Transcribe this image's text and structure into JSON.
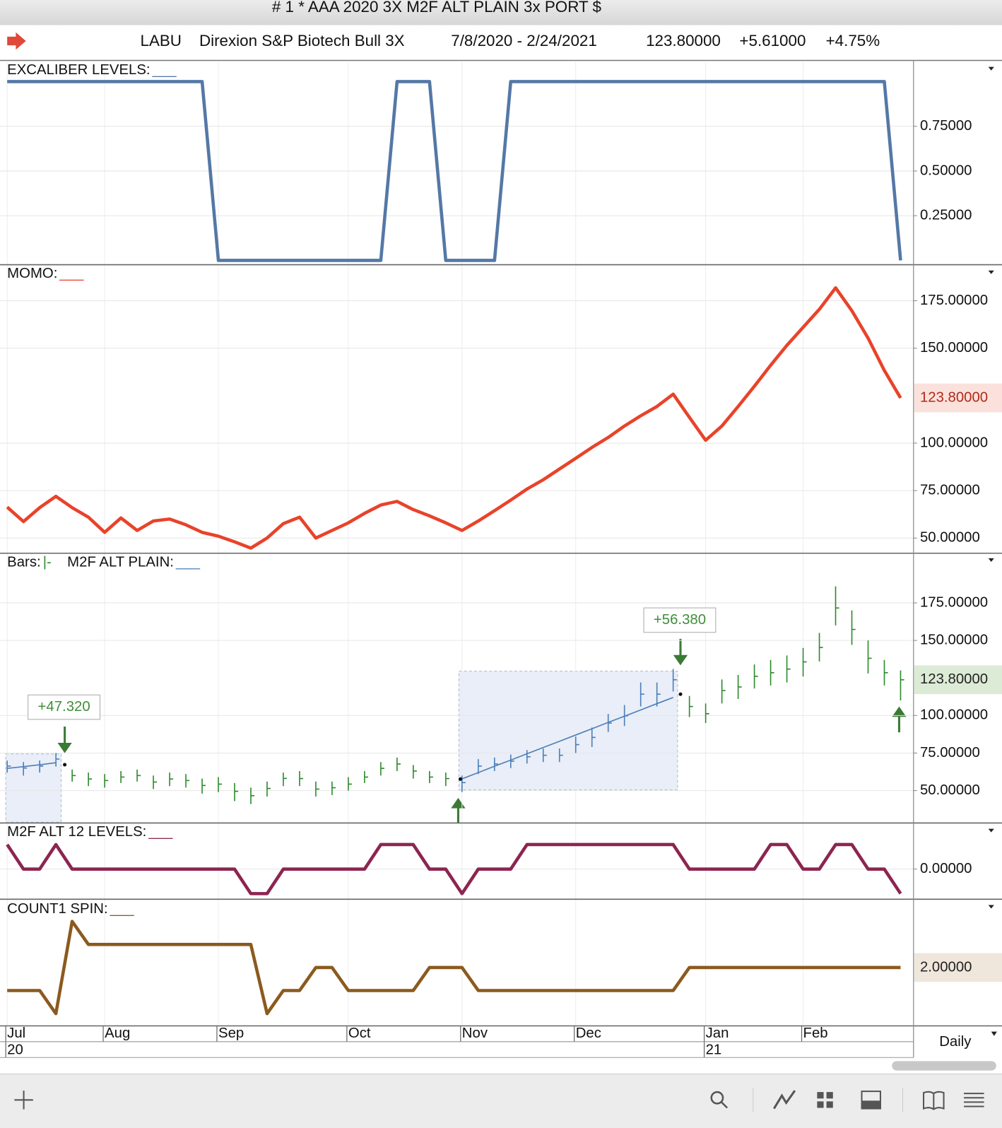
{
  "window_title": "# 1 * AAA 2020 3X M2F ALT PLAIN 3x PORT $",
  "header": {
    "symbol": "LABU",
    "name": "Direxion S&P Biotech Bull 3X",
    "range": "7/8/2020 - 2/24/2021",
    "last": "123.80000",
    "change": "+5.61000",
    "change_pct": "+4.75%"
  },
  "period": "Daily",
  "chart_data": [
    {
      "type": "line",
      "ylim": [
        -0.02,
        1.11
      ],
      "yticks": [
        {
          "value": 0.75,
          "label": "0.75000"
        },
        {
          "value": 0.5,
          "label": "0.50000"
        },
        {
          "value": 0.25,
          "label": "0.25000"
        }
      ],
      "series": [
        {
          "name": "EXCALIBER LEVELS:",
          "legend_symbol": "___",
          "color": "#5478a6",
          "values": [
            1,
            1,
            1,
            1,
            1,
            1,
            1,
            1,
            1,
            1,
            1,
            1,
            1,
            0,
            0,
            0,
            0,
            0,
            0,
            0,
            0,
            0,
            0,
            0,
            1,
            1,
            1,
            0,
            0,
            0,
            0,
            1,
            1,
            1,
            1,
            1,
            1,
            1,
            1,
            1,
            1,
            1,
            1,
            1,
            1,
            1,
            1,
            1,
            1,
            1,
            1,
            1,
            1,
            1,
            1,
            0
          ]
        }
      ]
    },
    {
      "type": "line",
      "ylim": [
        42.4,
        193.2
      ],
      "yticks": [
        {
          "value": 175,
          "label": "175.00000"
        },
        {
          "value": 150,
          "label": "150.00000"
        },
        {
          "value": 100,
          "label": "100.00000"
        },
        {
          "value": 75,
          "label": "75.00000"
        },
        {
          "value": 50,
          "label": "50.00000"
        }
      ],
      "last_label": {
        "value": 123.8,
        "label": "123.80000",
        "color": "#fbe1dc",
        "text_color": "#b02a1a"
      },
      "series": [
        {
          "name": "MOMO:",
          "legend_symbol": "___",
          "color": "#e8432a",
          "values": [
            66.3,
            58.7,
            66,
            72,
            66,
            61,
            53,
            60.6,
            54,
            59,
            60,
            57,
            53,
            51,
            48,
            44.7,
            50,
            57.6,
            61,
            50,
            54,
            58,
            63,
            67.4,
            69.3,
            65,
            61.7,
            58,
            54,
            59,
            64.4,
            70,
            75.8,
            80.7,
            86.4,
            92,
            97.7,
            103,
            109,
            114.4,
            119.3,
            125.8,
            113.6,
            101.5,
            109,
            119.3,
            130,
            141,
            151.5,
            161,
            170.5,
            181.8,
            169.7,
            155.3,
            138.3,
            123.8
          ]
        }
      ]
    },
    {
      "type": "ohlc",
      "ylim": [
        28.9,
        207.6
      ],
      "yticks": [
        {
          "value": 175,
          "label": "175.00000"
        },
        {
          "value": 150,
          "label": "150.00000"
        },
        {
          "value": 100,
          "label": "100.00000"
        },
        {
          "value": 75,
          "label": "75.00000"
        },
        {
          "value": 50,
          "label": "50.00000"
        }
      ],
      "last_label": {
        "value": 123.8,
        "label": "123.80000",
        "color": "#dcebd6",
        "text_color": "#222222"
      },
      "annotations": [
        "+47.320",
        "+56.380"
      ],
      "annotation_color": "#3f8f3a",
      "series": [
        {
          "name": "Bars:",
          "legend_symbol": "|-",
          "color": "#2f8a2f",
          "highlight_color": "#4d7fb8",
          "values": [
            66.3,
            65,
            66.3,
            71,
            60,
            57.7,
            56.7,
            59,
            60,
            55.7,
            57.7,
            56.7,
            53.4,
            54.3,
            49.5,
            46.6,
            51.4,
            58.1,
            58,
            51,
            51.9,
            54.3,
            59,
            64.8,
            67.7,
            63,
            59,
            58,
            55.3,
            66.3,
            67.7,
            69.6,
            72.5,
            73.5,
            73.5,
            80.6,
            85.4,
            95,
            99.8,
            114.2,
            114.2,
            123.8,
            106,
            101.2,
            116.6,
            119,
            126.1,
            128.5,
            130.9,
            135.7,
            145.3,
            171.6,
            157.3,
            138.1,
            128.5,
            123.8
          ],
          "high": [
            70,
            69,
            70,
            75,
            64,
            62,
            61,
            63,
            64,
            60,
            62,
            61,
            58,
            59,
            55,
            52,
            56,
            62,
            63,
            56,
            56,
            59,
            63,
            69,
            72,
            67,
            63,
            62,
            60,
            71,
            72,
            74,
            77,
            78,
            78,
            86,
            92,
            101,
            107,
            122,
            122,
            131,
            113,
            108,
            124,
            127,
            134,
            137,
            140,
            145,
            155,
            186,
            170,
            150,
            137,
            130
          ],
          "low": [
            62,
            60,
            62,
            66,
            56,
            53,
            52,
            55,
            56,
            51,
            53,
            52,
            48,
            49,
            43,
            41,
            46,
            53,
            53,
            46,
            47,
            50,
            55,
            60,
            63,
            58,
            55,
            53,
            49,
            61,
            63,
            65,
            68,
            69,
            69,
            75,
            79,
            89,
            93,
            106,
            106,
            116,
            99,
            95,
            108,
            111,
            118,
            120,
            122,
            126,
            136,
            160,
            147,
            128,
            120,
            110
          ]
        },
        {
          "name": "M2F ALT PLAIN:",
          "legend_symbol": "___",
          "color": "#4d7fb8",
          "values": [
            64.8,
            66,
            67.2,
            68.5,
            null,
            null,
            null,
            null,
            null,
            null,
            null,
            null,
            null,
            null,
            null,
            null,
            null,
            null,
            null,
            null,
            null,
            null,
            null,
            null,
            null,
            null,
            null,
            null,
            57.8,
            62,
            66.2,
            70.3,
            74.5,
            78.7,
            82.8,
            87,
            91.2,
            95.4,
            99.5,
            103.7,
            107.9,
            112,
            null,
            null,
            null,
            null,
            null,
            null,
            null,
            null,
            null,
            null,
            null,
            null,
            null,
            null
          ]
        }
      ]
    },
    {
      "type": "line",
      "ylim": [
        -1.2,
        1.82
      ],
      "yticks": [
        {
          "value": 0,
          "label": "0.00000"
        }
      ],
      "series": [
        {
          "name": "M2F ALT 12 LEVELS:",
          "legend_symbol": "___",
          "color": "#8c2550",
          "values": [
            1,
            0,
            0,
            1,
            0,
            0,
            0,
            0,
            0,
            0,
            0,
            0,
            0,
            0,
            0,
            -1,
            -1,
            0,
            0,
            0,
            0,
            0,
            0,
            1,
            1,
            1,
            0,
            0,
            -1,
            0,
            0,
            0,
            1,
            1,
            1,
            1,
            1,
            1,
            1,
            1,
            1,
            1,
            0,
            0,
            0,
            0,
            0,
            1,
            1,
            0,
            0,
            1,
            1,
            0,
            0,
            -1
          ]
        }
      ]
    },
    {
      "type": "line",
      "ylim": [
        -0.5,
        4.9
      ],
      "yticks": [],
      "last_label": {
        "value": 2,
        "label": "2.00000",
        "color": "#efe6dc",
        "text_color": "#222222"
      },
      "categories": [
        "Jul",
        null,
        null,
        null,
        null,
        null,
        "Aug",
        null,
        null,
        null,
        null,
        null,
        null,
        "Sep",
        null,
        null,
        null,
        null,
        null,
        null,
        null,
        "Oct",
        null,
        null,
        null,
        null,
        null,
        null,
        "Nov",
        null,
        null,
        null,
        null,
        null,
        null,
        "Dec",
        null,
        null,
        null,
        null,
        null,
        null,
        null,
        "Jan",
        null,
        null,
        null,
        null,
        null,
        "Feb",
        null,
        null,
        null,
        null,
        null,
        null
      ],
      "year_labels": [
        "20",
        null,
        null,
        null,
        null,
        null,
        null,
        null,
        null,
        null,
        null,
        null,
        null,
        null,
        null,
        null,
        null,
        null,
        null,
        null,
        null,
        null,
        null,
        null,
        null,
        null,
        null,
        null,
        null,
        null,
        null,
        null,
        null,
        null,
        null,
        null,
        null,
        null,
        null,
        null,
        null,
        null,
        null,
        "21",
        null,
        null,
        null,
        null,
        null,
        null,
        null,
        null,
        null,
        null,
        null,
        null
      ],
      "series": [
        {
          "name": "COUNT1 SPIN:",
          "legend_symbol": "___",
          "color": "#8b5a1e",
          "values": [
            1,
            1,
            1,
            0,
            4,
            3,
            3,
            3,
            3,
            3,
            3,
            3,
            3,
            3,
            3,
            3,
            0,
            1,
            1,
            2,
            2,
            1,
            1,
            1,
            1,
            1,
            2,
            2,
            2,
            1,
            1,
            1,
            1,
            1,
            1,
            1,
            1,
            1,
            1,
            1,
            1,
            1,
            2,
            2,
            2,
            2,
            2,
            2,
            2,
            2,
            2,
            2,
            2,
            2,
            2,
            2
          ]
        }
      ]
    }
  ]
}
